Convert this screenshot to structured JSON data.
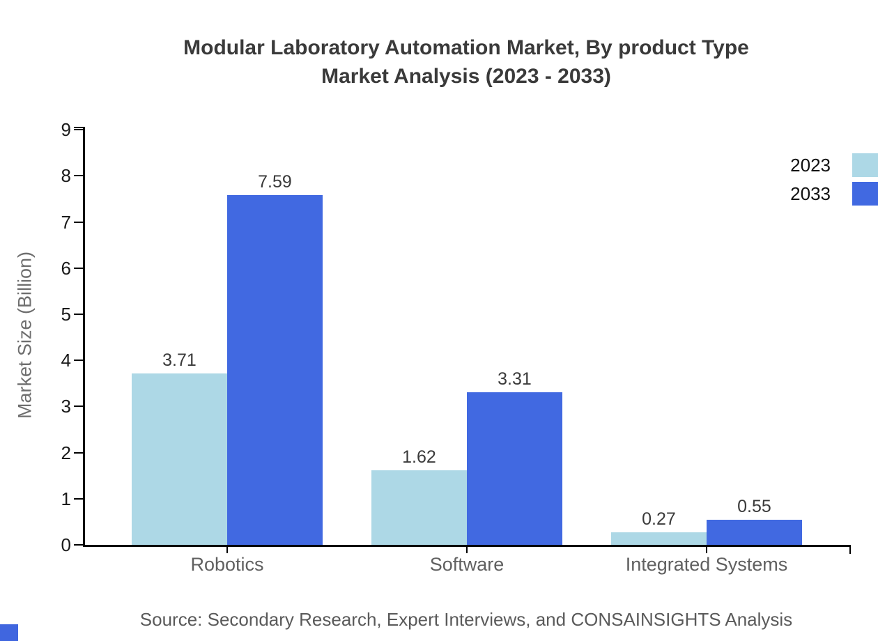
{
  "chart": {
    "title_line1": "Modular Laboratory Automation Market, By product Type",
    "title_line2": "Market Analysis (2023 - 2033)",
    "source_note": "Source: Secondary Research, Expert Interviews, and CONSAINSIGHTS Analysis"
  },
  "chart_data": {
    "type": "bar",
    "title": "Modular Laboratory Automation Market, By product Type",
    "subtitle": "Market Analysis (2023 - 2033)",
    "categories": [
      "Robotics",
      "Software",
      "Integrated Systems"
    ],
    "series": [
      {
        "name": "2023",
        "color": "#ADD8E6",
        "values": [
          3.71,
          1.62,
          0.27
        ]
      },
      {
        "name": "2033",
        "color": "#4169E1",
        "values": [
          7.59,
          3.31,
          0.55
        ]
      }
    ],
    "value_labels": [
      "3.71",
      "7.59",
      "1.62",
      "3.31",
      "0.27",
      "0.55"
    ],
    "xlabel": "",
    "ylabel": "Market Size (Billion)",
    "ylim": [
      0,
      9
    ],
    "yticks": [
      0,
      1,
      2,
      3,
      4,
      5,
      6,
      7,
      8,
      9
    ],
    "grid": false,
    "legend_position": "top-right",
    "legend_entries": [
      "2023",
      "2033"
    ],
    "colors": {
      "series_2023": "#ADD8E6",
      "series_2033": "#4169E1",
      "axis": "#000000",
      "title_text": "#3a3a3a",
      "tick_text": "#1a1a1a",
      "category_text": "#606060",
      "source_text": "#5a5a5a"
    },
    "source": "Source: Secondary Research, Expert Interviews, and CONSAINSIGHTS Analysis"
  }
}
